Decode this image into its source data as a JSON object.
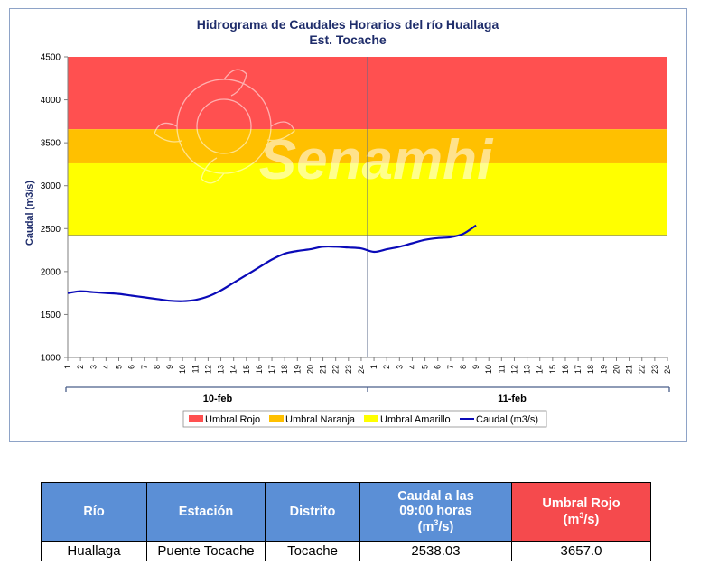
{
  "chart_data": {
    "type": "line",
    "title": "Hidrograma de Caudales Horarios del río Huallaga",
    "subtitle": "Est. Tocache",
    "watermark": "Senamhi",
    "ylabel": "Caudal  (m3/s)",
    "ylim": [
      1000,
      4500
    ],
    "yticks": [
      1000,
      1500,
      2000,
      2500,
      3000,
      3500,
      4000,
      4500
    ],
    "xticks": [
      "1",
      "2",
      "3",
      "4",
      "5",
      "6",
      "7",
      "8",
      "9",
      "10",
      "11",
      "12",
      "13",
      "14",
      "15",
      "16",
      "17",
      "18",
      "19",
      "20",
      "21",
      "22",
      "23",
      "24",
      "1",
      "2",
      "3",
      "4",
      "5",
      "6",
      "7",
      "8",
      "9",
      "10",
      "11",
      "12",
      "13",
      "14",
      "15",
      "16",
      "17",
      "18",
      "19",
      "20",
      "21",
      "22",
      "23",
      "24"
    ],
    "days": [
      "10-feb",
      "11-feb"
    ],
    "thresholds": [
      {
        "name": "Umbral Rojo",
        "from": 3657,
        "to": 4500,
        "color": "#ff5050"
      },
      {
        "name": "Umbral Naranja",
        "from": 3260,
        "to": 3657,
        "color": "#ffc000"
      },
      {
        "name": "Umbral Amarillo",
        "from": 2420,
        "to": 3260,
        "color": "#ffff00"
      }
    ],
    "series": [
      {
        "name": "Caudal (m3/s)",
        "color": "#0a0ab8",
        "values": [
          1750,
          1770,
          1760,
          1750,
          1740,
          1720,
          1700,
          1680,
          1660,
          1655,
          1670,
          1710,
          1780,
          1870,
          1960,
          2050,
          2140,
          2210,
          2240,
          2260,
          2290,
          2290,
          2280,
          2270,
          2230,
          2260,
          2290,
          2330,
          2370,
          2390,
          2400,
          2440,
          2538
        ]
      }
    ],
    "legend": {
      "position": "bottom",
      "items": [
        "Umbral Rojo",
        "Umbral Naranja",
        "Umbral Amarillo",
        "Caudal (m3/s)"
      ]
    },
    "grid": false
  },
  "table": {
    "headers": [
      "Río",
      "Estación",
      "Distrito",
      "Caudal a las 09:00 horas (m³/s)",
      "Umbral Rojo (m³/s)"
    ],
    "header_caudal_lines": [
      "Caudal a las",
      "09:00 horas",
      "(m",
      "3",
      "/s)"
    ],
    "header_umbral_lines": [
      "Umbral Rojo",
      "(m",
      "3",
      "/s)"
    ],
    "row": [
      "Huallaga",
      "Puente Tocache",
      "Tocache",
      "2538.03",
      "3657.0"
    ]
  }
}
